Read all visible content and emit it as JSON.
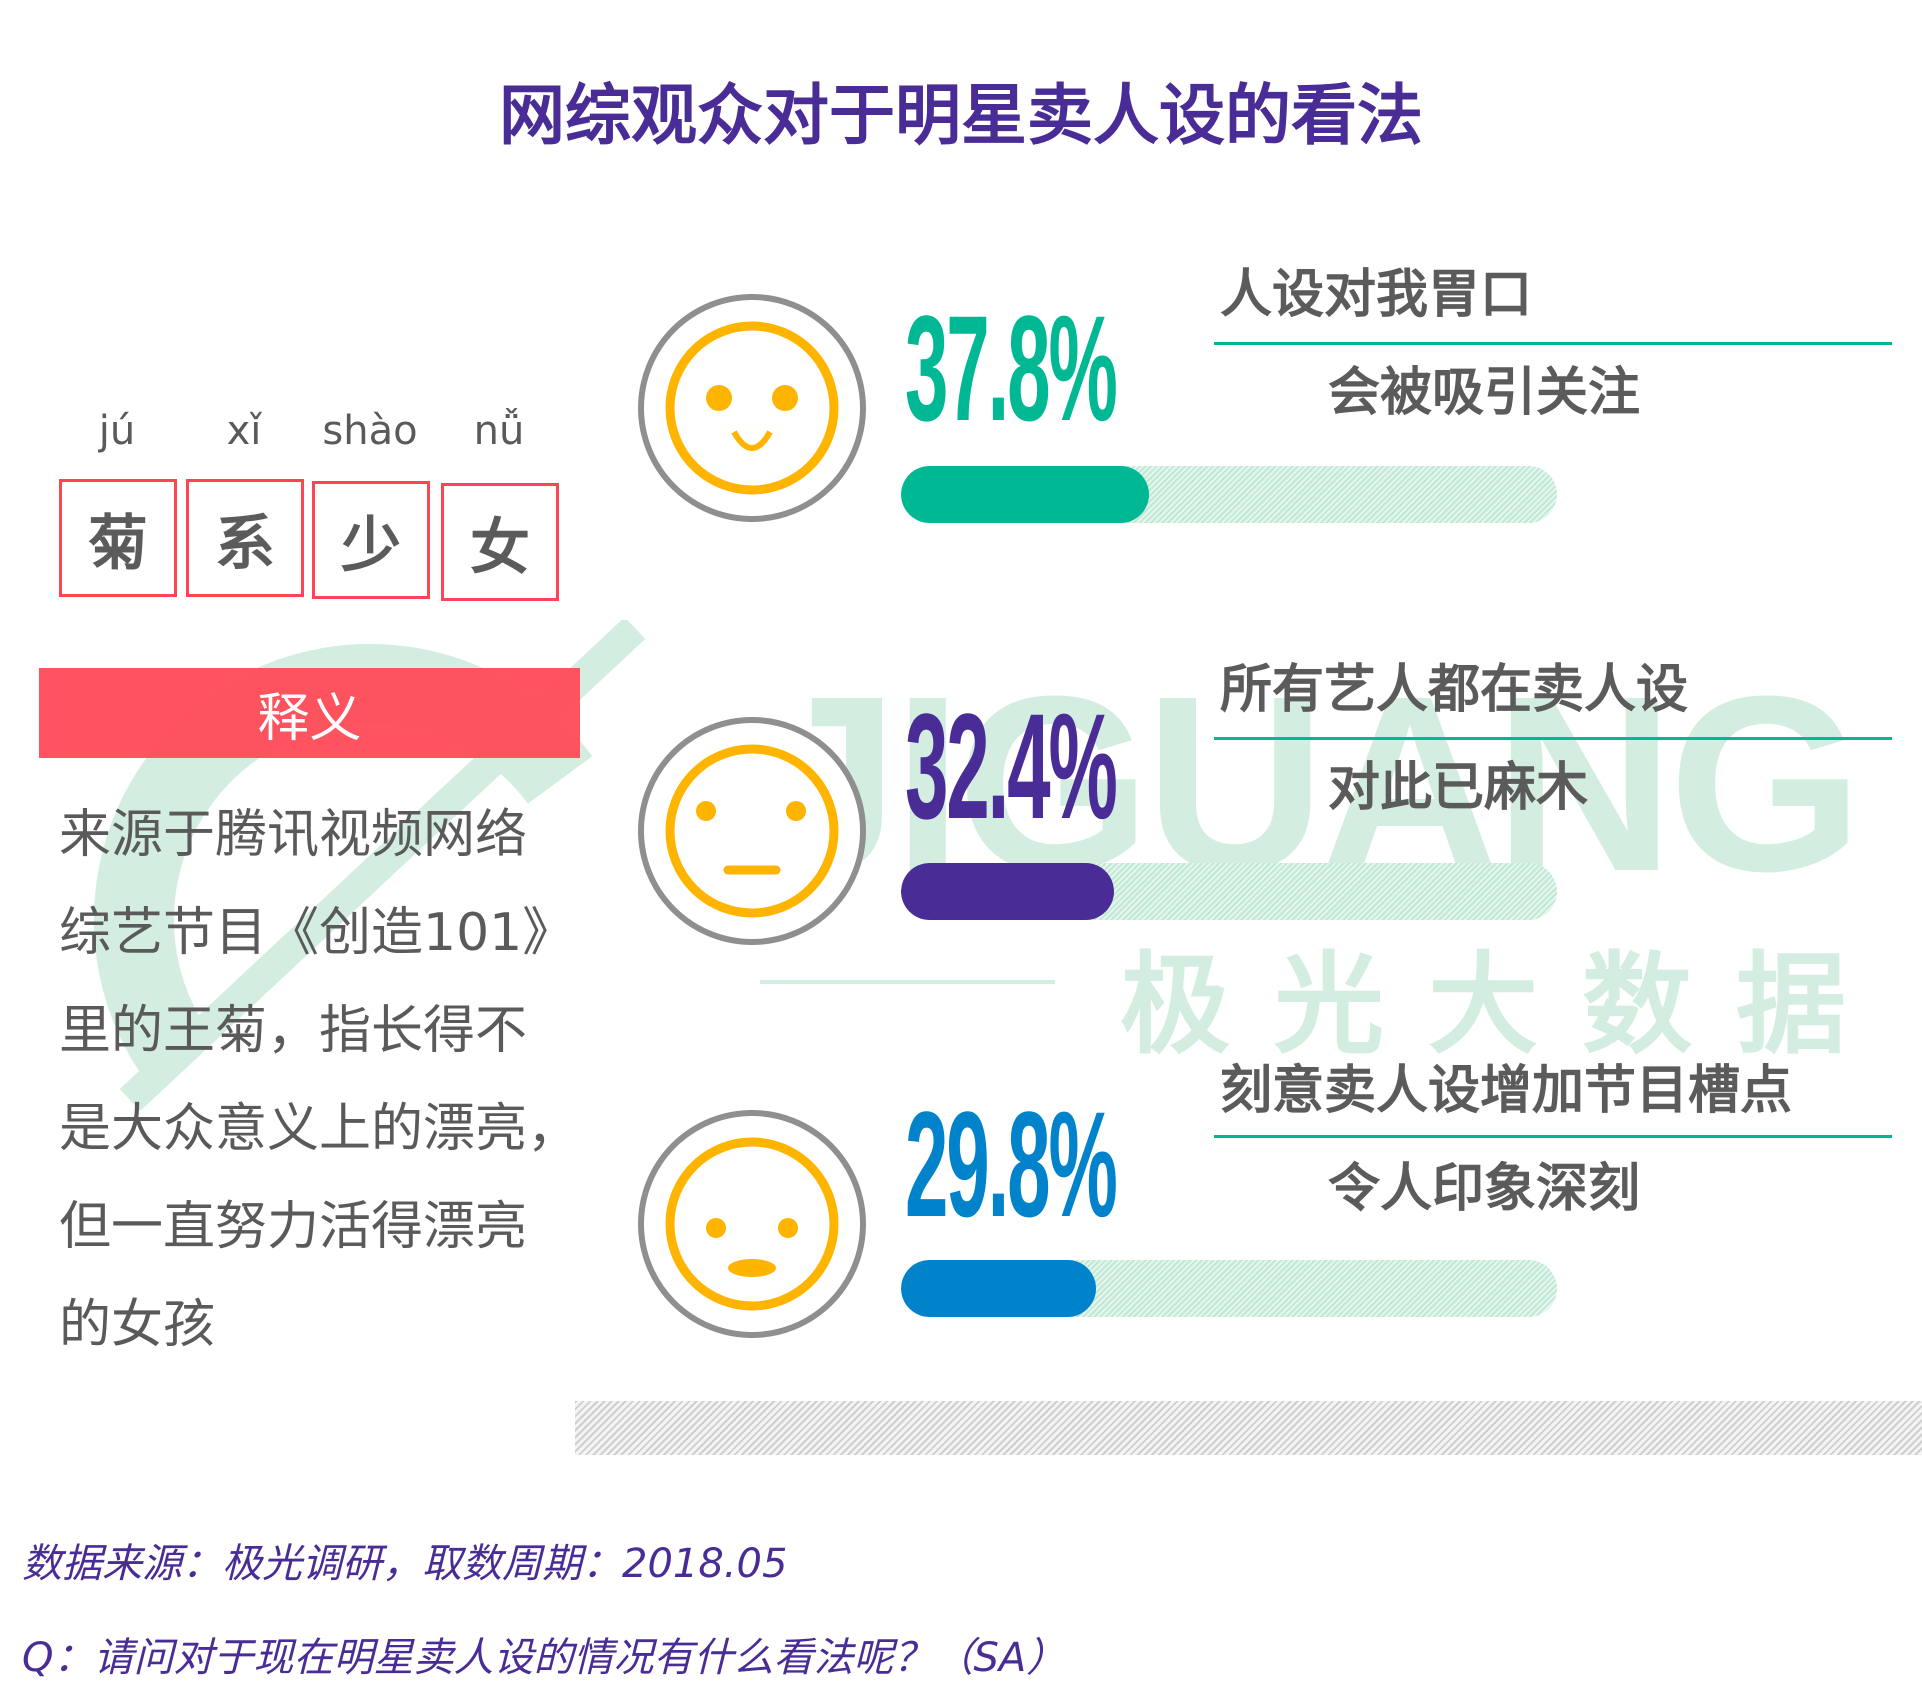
{
  "title": "网综观众对于明星卖人设的看法",
  "watermark": {
    "brand": "JIGUANG",
    "brand_cn": "极光大数据"
  },
  "term": {
    "pinyin": [
      "jú",
      "xǐ",
      "shào",
      "nǚ"
    ],
    "chars": [
      "菊",
      "系",
      "少",
      "女"
    ],
    "definition_label": "释义",
    "definition_lines": [
      "来源于腾讯视频网络",
      "综艺节目《创造101》",
      "里的王菊，指长得不",
      "是大众意义上的漂亮，",
      "但一直努力活得漂亮",
      "的女孩"
    ]
  },
  "results": [
    {
      "percent_label": "37.8%",
      "value": 37.8,
      "color": "#00b894",
      "line1": "人设对我胃口",
      "line2": "会被吸引关注",
      "face": "smile"
    },
    {
      "percent_label": "32.4%",
      "value": 32.4,
      "color": "#4a2c96",
      "line1": "所有艺人都在卖人设",
      "line2": "对此已麻木",
      "face": "neutral"
    },
    {
      "percent_label": "29.8%",
      "value": 29.8,
      "color": "#0083cb",
      "line1": "刻意卖人设增加节目槽点",
      "line2": "令人印象深刻",
      "face": "surprised"
    }
  ],
  "footer": {
    "source": "数据来源：极光调研，取数周期：2018.05",
    "question": "Q：请问对于现在明星卖人设的情况有什么看法呢？（SA）"
  }
}
